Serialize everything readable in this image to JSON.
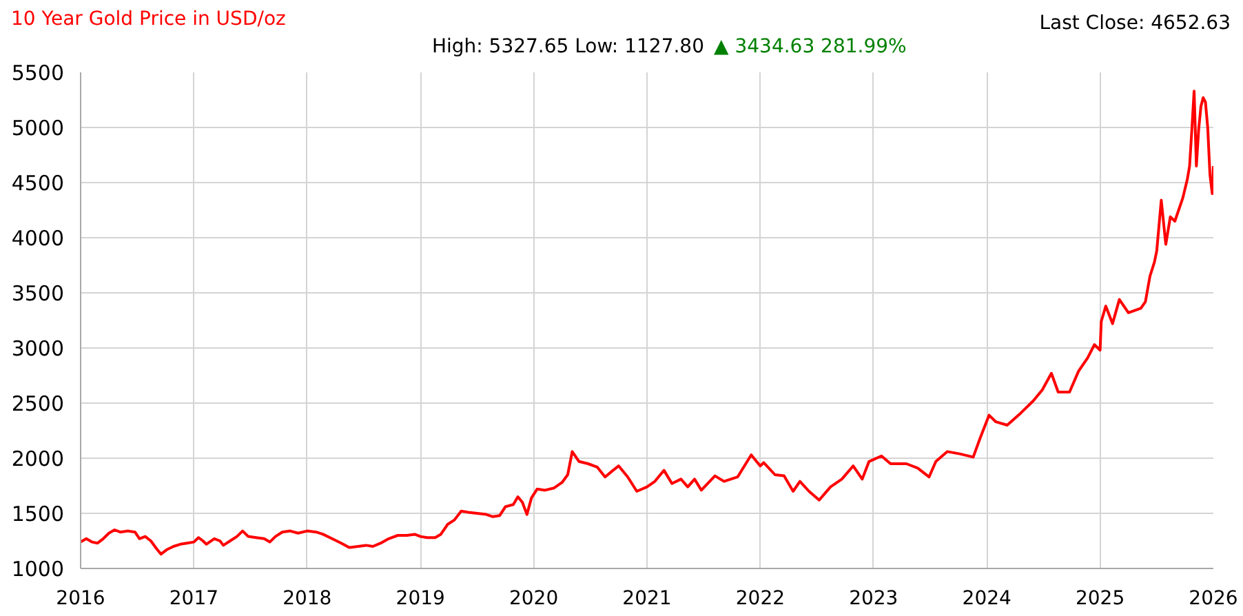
{
  "chart_data": {
    "type": "line",
    "title": "10 Year Gold Price in USD/oz",
    "subtitle": "High: 5327.65 Low: 1127.80",
    "annotations": [
      "▲ 3434.63 281.99%",
      "Last Close: 4652.63"
    ],
    "x": [
      2016.0,
      2016.05,
      2016.1,
      2016.15,
      2016.2,
      2016.25,
      2016.3,
      2016.35,
      2016.42,
      2016.48,
      2016.52,
      2016.57,
      2016.62,
      2016.67,
      2016.71,
      2016.76,
      2016.82,
      2016.88,
      2016.94,
      2017.0,
      2017.04,
      2017.08,
      2017.11,
      2017.18,
      2017.23,
      2017.26,
      2017.32,
      2017.38,
      2017.43,
      2017.48,
      2017.55,
      2017.62,
      2017.67,
      2017.72,
      2017.78,
      2017.85,
      2017.92,
      2018.0,
      2018.08,
      2018.14,
      2018.22,
      2018.3,
      2018.37,
      2018.45,
      2018.52,
      2018.58,
      2018.65,
      2018.72,
      2018.8,
      2018.88,
      2018.95,
      2019.0,
      2019.06,
      2019.13,
      2019.18,
      2019.24,
      2019.3,
      2019.36,
      2019.42,
      2019.5,
      2019.58,
      2019.64,
      2019.7,
      2019.75,
      2019.82,
      2019.86,
      2019.9,
      2019.94,
      2019.98,
      2020.03,
      2020.1,
      2020.18,
      2020.25,
      2020.3,
      2020.34,
      2020.4,
      2020.48,
      2020.56,
      2020.63,
      2020.7,
      2020.75,
      2020.83,
      2020.91,
      2021.0,
      2021.07,
      2021.15,
      2021.22,
      2021.3,
      2021.36,
      2021.42,
      2021.48,
      2021.6,
      2021.68,
      2021.8,
      2021.92,
      2022.0,
      2022.03,
      2022.13,
      2022.21,
      2022.29,
      2022.35,
      2022.43,
      2022.52,
      2022.62,
      2022.72,
      2022.82,
      2022.9,
      2022.96,
      2023.07,
      2023.15,
      2023.29,
      2023.39,
      2023.49,
      2023.55,
      2023.65,
      2023.76,
      2023.88,
      2023.94,
      2024.02,
      2024.08,
      2024.18,
      2024.3,
      2024.41,
      2024.49,
      2024.57,
      2024.63,
      2024.73,
      2024.81,
      2024.89,
      2024.95,
      2025.0,
      2025.01,
      2025.05,
      2025.11,
      2025.17,
      2025.25,
      2025.36,
      2025.4,
      2025.44,
      2025.48,
      2025.5,
      2025.54,
      2025.58,
      2025.62,
      2025.66,
      2025.73,
      2025.77,
      2025.79,
      2025.81,
      2025.83,
      2025.85,
      2025.87,
      2025.89,
      2025.91,
      2025.93,
      2025.95,
      2025.97,
      2025.99,
      2026.0
    ],
    "series": [
      {
        "color": "#ff0000",
        "values": [
          1240,
          1270,
          1240,
          1230,
          1270,
          1320,
          1350,
          1330,
          1340,
          1330,
          1270,
          1290,
          1250,
          1180,
          1130,
          1170,
          1200,
          1220,
          1230,
          1240,
          1280,
          1250,
          1220,
          1270,
          1250,
          1210,
          1250,
          1290,
          1340,
          1290,
          1280,
          1270,
          1240,
          1290,
          1330,
          1340,
          1320,
          1340,
          1330,
          1310,
          1270,
          1230,
          1190,
          1200,
          1210,
          1200,
          1230,
          1270,
          1300,
          1300,
          1310,
          1290,
          1280,
          1280,
          1310,
          1400,
          1440,
          1520,
          1510,
          1500,
          1490,
          1470,
          1480,
          1560,
          1580,
          1650,
          1600,
          1490,
          1640,
          1720,
          1710,
          1730,
          1780,
          1850,
          2060,
          1970,
          1950,
          1920,
          1830,
          1890,
          1930,
          1830,
          1700,
          1740,
          1790,
          1890,
          1770,
          1810,
          1740,
          1810,
          1710,
          1840,
          1790,
          1830,
          2030,
          1930,
          1960,
          1850,
          1840,
          1700,
          1790,
          1700,
          1620,
          1740,
          1810,
          1930,
          1810,
          1970,
          2020,
          1950,
          1950,
          1910,
          1830,
          1970,
          2060,
          2040,
          2010,
          2180,
          2390,
          2330,
          2300,
          2410,
          2520,
          2620,
          2770,
          2600,
          2600,
          2790,
          2910,
          3030,
          2980,
          3240,
          3380,
          3220,
          3440,
          3320,
          3360,
          3420,
          3650,
          3780,
          3880,
          4340,
          3940,
          4190,
          4150,
          4360,
          4530,
          4650,
          4980,
          5330,
          4650,
          4980,
          5190,
          5270,
          5230,
          5000,
          4570,
          4400,
          4650
        ]
      }
    ],
    "xlim": [
      2016,
      2026
    ],
    "ylim": [
      1000,
      5500
    ],
    "xticks": [
      2016,
      2017,
      2018,
      2019,
      2020,
      2021,
      2022,
      2023,
      2024,
      2025,
      2026
    ],
    "yticks": [
      1000,
      1500,
      2000,
      2500,
      3000,
      3500,
      4000,
      4500,
      5000,
      5500
    ],
    "grid": true,
    "line_style": "solid"
  }
}
